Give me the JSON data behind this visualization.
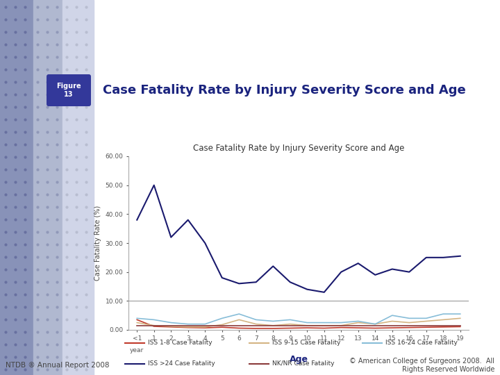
{
  "figure_label": "Figure\n13",
  "header_title": "Case Fatality Rate by Injury Severity Score and Age",
  "xlabel": "Age",
  "ylabel": "Case Fatality Rate (%)",
  "chart_title": "Case Fatality Rate by Injury Severity Score and Age",
  "age_labels": [
    "<1",
    "1",
    "2",
    "3",
    "4",
    "5",
    "6",
    "7",
    "8",
    "9",
    "10",
    "11",
    "12",
    "13",
    "14",
    "15",
    "16",
    "17",
    "18",
    "19"
  ],
  "age_sublabel": "year",
  "ylim": [
    0,
    60
  ],
  "yticks": [
    0.0,
    10.0,
    20.0,
    30.0,
    40.0,
    50.0,
    60.0
  ],
  "iss_1_8": [
    3.5,
    1.2,
    1.0,
    0.8,
    0.7,
    0.9,
    0.6,
    0.5,
    0.5,
    0.6,
    0.7,
    0.6,
    0.8,
    0.7,
    0.6,
    0.7,
    0.8,
    0.9,
    1.0,
    1.1
  ],
  "iss_9_15": [
    2.5,
    1.5,
    1.2,
    1.0,
    1.0,
    1.8,
    3.5,
    2.0,
    1.5,
    2.0,
    1.5,
    1.5,
    1.5,
    2.5,
    2.0,
    3.0,
    2.5,
    3.0,
    3.5,
    4.0
  ],
  "iss_16_24": [
    4.0,
    3.5,
    2.5,
    2.0,
    2.0,
    4.0,
    5.5,
    3.5,
    3.0,
    3.5,
    2.5,
    2.5,
    2.5,
    3.0,
    2.0,
    5.0,
    4.0,
    4.0,
    5.5,
    5.5
  ],
  "iss_gt24": [
    38.0,
    50.0,
    32.0,
    38.0,
    30.0,
    18.0,
    16.0,
    16.5,
    22.0,
    16.5,
    14.0,
    13.0,
    20.0,
    23.0,
    19.0,
    21.0,
    20.0,
    25.0,
    25.0,
    25.5
  ],
  "nk_nr": [
    1.5,
    1.5,
    1.5,
    1.5,
    1.5,
    1.5,
    1.5,
    1.5,
    1.5,
    1.5,
    1.5,
    1.5,
    1.5,
    1.5,
    1.5,
    1.5,
    1.5,
    1.5,
    1.5,
    1.5
  ],
  "color_iss_1_8": "#c0392b",
  "color_iss_9_15": "#d4b483",
  "color_iss_16_24": "#87bdd8",
  "color_iss_gt24": "#1a1a6e",
  "color_nk_nr": "#8b3a3a",
  "bg_color": "#ffffff",
  "left_col1": "#8892b8",
  "left_col2": "#b0b8d0",
  "left_col3": "#d0d5e8",
  "dot_color": "#9098b8",
  "fig_label_bg": "#33389a",
  "fig_label_color": "#ffffff",
  "header_color": "#1a237e",
  "footer_left": "NTDB ® Annual Report 2008",
  "footer_right": "© American College of Surgeons 2008.  All\nRights Reserved Worldwide",
  "hline_color": "#999999",
  "legend_row1": [
    [
      "#c0392b",
      "ISS 1-8 Case Fatality"
    ],
    [
      "#d4b483",
      "ISS 9-15 Case Fatality"
    ],
    [
      "#87bdd8",
      "ISS 16-24 Case Fatality"
    ]
  ],
  "legend_row2": [
    [
      "#1a1a6e",
      "ISS >24 Case Fatality"
    ],
    [
      "#8b3a3a",
      "NK/NR Case Fatality"
    ]
  ]
}
